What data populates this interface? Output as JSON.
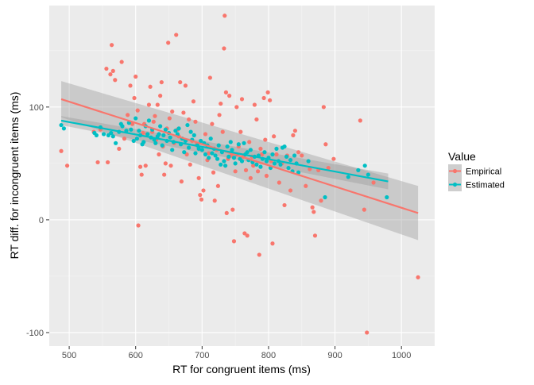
{
  "chart_data": {
    "type": "scatter",
    "xlabel": "RT for congruent items (ms)",
    "ylabel": "RT diff. for incongruent items (ms)",
    "xlim": [
      470,
      1050
    ],
    "ylim": [
      -112,
      190
    ],
    "x_ticks": [
      500,
      600,
      700,
      800,
      900,
      1000
    ],
    "y_ticks": [
      -100,
      0,
      100
    ],
    "x_tick_labels": [
      "500",
      "600",
      "700",
      "800",
      "900",
      "1000"
    ],
    "y_tick_labels": [
      "-100",
      "0",
      "100"
    ],
    "grid": true,
    "legend": {
      "title": "Value",
      "placement": "right",
      "entries": [
        "Empirical",
        "Estimated"
      ]
    },
    "series": [
      {
        "name": "Empirical",
        "color": "#F8766D",
        "fit": {
          "x": [
            488,
            1025
          ],
          "y": [
            107,
            6
          ],
          "ci_upper": [
            123,
            30
          ],
          "ci_lower": [
            91,
            -18
          ]
        },
        "points": [
          [
            488,
            61
          ],
          [
            497,
            48
          ],
          [
            537,
            78
          ],
          [
            543,
            51
          ],
          [
            547,
            80
          ],
          [
            556,
            134
          ],
          [
            558,
            51
          ],
          [
            562,
            129
          ],
          [
            564,
            155
          ],
          [
            566,
            132
          ],
          [
            569,
            124
          ],
          [
            575,
            63
          ],
          [
            579,
            140
          ],
          [
            583,
            72
          ],
          [
            588,
            93
          ],
          [
            592,
            119
          ],
          [
            595,
            85
          ],
          [
            598,
            108
          ],
          [
            600,
            127
          ],
          [
            603,
            97
          ],
          [
            604,
            -5
          ],
          [
            607,
            47
          ],
          [
            609,
            40
          ],
          [
            611,
            77
          ],
          [
            613,
            85
          ],
          [
            615,
            48
          ],
          [
            617,
            76
          ],
          [
            620,
            102
          ],
          [
            622,
            118
          ],
          [
            625,
            78
          ],
          [
            627,
            87
          ],
          [
            629,
            92
          ],
          [
            631,
            71
          ],
          [
            633,
            102
          ],
          [
            635,
            58
          ],
          [
            637,
            110
          ],
          [
            639,
            122
          ],
          [
            641,
            65
          ],
          [
            643,
            40
          ],
          [
            645,
            50
          ],
          [
            647,
            81
          ],
          [
            649,
            157
          ],
          [
            651,
            90
          ],
          [
            653,
            48
          ],
          [
            655,
            96
          ],
          [
            658,
            68
          ],
          [
            661,
            164
          ],
          [
            663,
            80
          ],
          [
            665,
            74
          ],
          [
            667,
            122
          ],
          [
            669,
            34
          ],
          [
            672,
            95
          ],
          [
            675,
            119
          ],
          [
            677,
            58
          ],
          [
            680,
            89
          ],
          [
            682,
            49
          ],
          [
            685,
            70
          ],
          [
            687,
            105
          ],
          [
            690,
            87
          ],
          [
            692,
            67
          ],
          [
            695,
            37
          ],
          [
            697,
            22
          ],
          [
            699,
            18
          ],
          [
            702,
            26
          ],
          [
            705,
            76
          ],
          [
            708,
            53
          ],
          [
            710,
            59
          ],
          [
            712,
            126
          ],
          [
            715,
            85
          ],
          [
            717,
            42
          ],
          [
            719,
            17
          ],
          [
            722,
            62
          ],
          [
            724,
            30
          ],
          [
            726,
            93
          ],
          [
            728,
            103
          ],
          [
            731,
            78
          ],
          [
            733,
            152
          ],
          [
            734,
            181
          ],
          [
            736,
            113
          ],
          [
            737,
            6
          ],
          [
            739,
            54
          ],
          [
            741,
            110
          ],
          [
            744,
            57
          ],
          [
            746,
            9
          ],
          [
            748,
            -19
          ],
          [
            750,
            43
          ],
          [
            752,
            100
          ],
          [
            755,
            65
          ],
          [
            758,
            78
          ],
          [
            760,
            107
          ],
          [
            762,
            56
          ],
          [
            764,
            -12
          ],
          [
            766,
            44
          ],
          [
            768,
            -14
          ],
          [
            771,
            69
          ],
          [
            773,
            37
          ],
          [
            775,
            56
          ],
          [
            777,
            48
          ],
          [
            779,
            102
          ],
          [
            782,
            89
          ],
          [
            784,
            43
          ],
          [
            786,
            -31
          ],
          [
            788,
            63
          ],
          [
            790,
            58
          ],
          [
            793,
            108
          ],
          [
            795,
            71
          ],
          [
            797,
            39
          ],
          [
            799,
            113
          ],
          [
            802,
            106
          ],
          [
            804,
            52
          ],
          [
            806,
            -21
          ],
          [
            808,
            74
          ],
          [
            812,
            58
          ],
          [
            816,
            33
          ],
          [
            820,
            50
          ],
          [
            824,
            13
          ],
          [
            828,
            57
          ],
          [
            833,
            26
          ],
          [
            837,
            75
          ],
          [
            840,
            79
          ],
          [
            845,
            60
          ],
          [
            850,
            57
          ],
          [
            856,
            30
          ],
          [
            862,
            45
          ],
          [
            866,
            11
          ],
          [
            868,
            7
          ],
          [
            870,
            -14
          ],
          [
            875,
            44
          ],
          [
            879,
            17
          ],
          [
            883,
            100
          ],
          [
            886,
            67
          ],
          [
            890,
            46
          ],
          [
            898,
            54
          ],
          [
            938,
            88
          ],
          [
            944,
            9
          ],
          [
            948,
            -100
          ],
          [
            958,
            33
          ],
          [
            1025,
            -51
          ]
        ]
      },
      {
        "name": "Estimated",
        "color": "#00BFC4",
        "fit": {
          "x": [
            488,
            980
          ],
          "y": [
            88,
            34
          ],
          "ci_upper": [
            92,
            41
          ],
          "ci_lower": [
            84,
            27
          ]
        },
        "points": [
          [
            488,
            84
          ],
          [
            492,
            81
          ],
          [
            538,
            77
          ],
          [
            541,
            75
          ],
          [
            547,
            82
          ],
          [
            552,
            76
          ],
          [
            559,
            75
          ],
          [
            563,
            77
          ],
          [
            566,
            74
          ],
          [
            570,
            68
          ],
          [
            575,
            78
          ],
          [
            578,
            85
          ],
          [
            580,
            83
          ],
          [
            586,
            79
          ],
          [
            590,
            86
          ],
          [
            593,
            80
          ],
          [
            597,
            70
          ],
          [
            600,
            90
          ],
          [
            602,
            72
          ],
          [
            605,
            79
          ],
          [
            607,
            75
          ],
          [
            610,
            67
          ],
          [
            612,
            69
          ],
          [
            615,
            83
          ],
          [
            618,
            76
          ],
          [
            620,
            88
          ],
          [
            623,
            73
          ],
          [
            625,
            80
          ],
          [
            628,
            71
          ],
          [
            630,
            68
          ],
          [
            633,
            74
          ],
          [
            635,
            76
          ],
          [
            637,
            83
          ],
          [
            640,
            66
          ],
          [
            642,
            75
          ],
          [
            645,
            80
          ],
          [
            647,
            70
          ],
          [
            650,
            77
          ],
          [
            652,
            73
          ],
          [
            655,
            62
          ],
          [
            657,
            69
          ],
          [
            660,
            79
          ],
          [
            663,
            76
          ],
          [
            665,
            81
          ],
          [
            668,
            67
          ],
          [
            670,
            72
          ],
          [
            673,
            60
          ],
          [
            675,
            70
          ],
          [
            678,
            84
          ],
          [
            680,
            64
          ],
          [
            683,
            78
          ],
          [
            685,
            71
          ],
          [
            688,
            75
          ],
          [
            690,
            59
          ],
          [
            693,
            66
          ],
          [
            695,
            63
          ],
          [
            698,
            70
          ],
          [
            700,
            62
          ],
          [
            703,
            68
          ],
          [
            705,
            58
          ],
          [
            708,
            66
          ],
          [
            710,
            55
          ],
          [
            713,
            72
          ],
          [
            715,
            59
          ],
          [
            718,
            63
          ],
          [
            720,
            57
          ],
          [
            723,
            54
          ],
          [
            725,
            66
          ],
          [
            728,
            49
          ],
          [
            730,
            60
          ],
          [
            733,
            52
          ],
          [
            735,
            48
          ],
          [
            738,
            65
          ],
          [
            740,
            56
          ],
          [
            743,
            69
          ],
          [
            745,
            62
          ],
          [
            748,
            55
          ],
          [
            750,
            50
          ],
          [
            752,
            58
          ],
          [
            755,
            67
          ],
          [
            757,
            54
          ],
          [
            760,
            52
          ],
          [
            763,
            68
          ],
          [
            765,
            58
          ],
          [
            768,
            60
          ],
          [
            770,
            53
          ],
          [
            773,
            62
          ],
          [
            776,
            51
          ],
          [
            779,
            56
          ],
          [
            782,
            49
          ],
          [
            785,
            57
          ],
          [
            788,
            47
          ],
          [
            791,
            54
          ],
          [
            794,
            60
          ],
          [
            797,
            52
          ],
          [
            800,
            55
          ],
          [
            803,
            46
          ],
          [
            806,
            58
          ],
          [
            809,
            50
          ],
          [
            812,
            63
          ],
          [
            815,
            52
          ],
          [
            818,
            49
          ],
          [
            821,
            64
          ],
          [
            824,
            65
          ],
          [
            827,
            56
          ],
          [
            830,
            46
          ],
          [
            833,
            53
          ],
          [
            836,
            43
          ],
          [
            839,
            57
          ],
          [
            842,
            50
          ],
          [
            845,
            42
          ],
          [
            860,
            52
          ],
          [
            885,
            20
          ],
          [
            920,
            38
          ],
          [
            935,
            44
          ],
          [
            945,
            48
          ],
          [
            950,
            40
          ],
          [
            978,
            20
          ]
        ]
      }
    ]
  }
}
